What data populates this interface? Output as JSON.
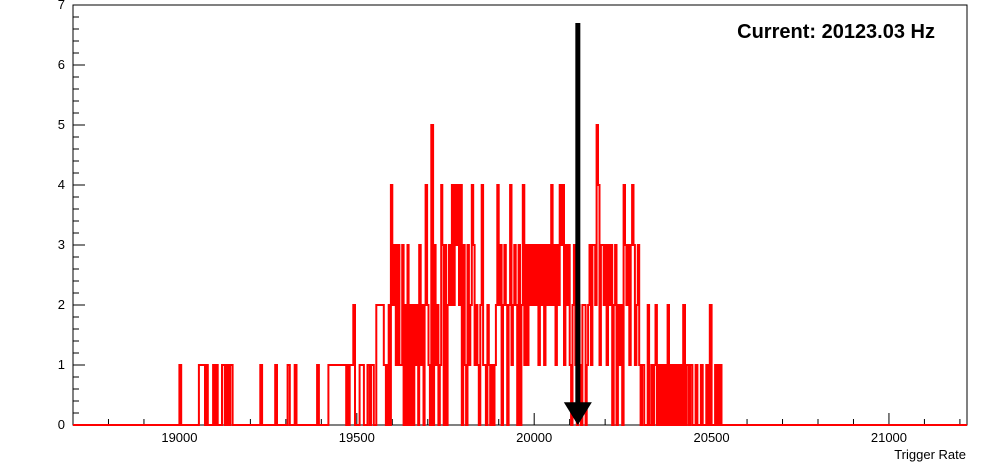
{
  "chart_data": {
    "type": "histogram",
    "title": "",
    "xlabel": "Trigger Rate",
    "ylabel": "",
    "xlim": [
      18700,
      21220
    ],
    "ylim": [
      0,
      7
    ],
    "xticks": [
      19000,
      19500,
      20000,
      20500,
      21000
    ],
    "yticks": [
      0,
      1,
      2,
      3,
      4,
      5,
      6,
      7
    ],
    "grid": false,
    "series": [
      {
        "color": "#ff0000",
        "points": [
          [
            18700,
            0
          ],
          [
            19000,
            1
          ],
          [
            19005,
            0
          ],
          [
            19055,
            1
          ],
          [
            19072,
            0
          ],
          [
            19075,
            1
          ],
          [
            19080,
            0
          ],
          [
            19095,
            1
          ],
          [
            19100,
            0
          ],
          [
            19103,
            1
          ],
          [
            19108,
            0
          ],
          [
            19120,
            1
          ],
          [
            19128,
            0
          ],
          [
            19130,
            1
          ],
          [
            19133,
            0
          ],
          [
            19137,
            1
          ],
          [
            19140,
            0
          ],
          [
            19143,
            1
          ],
          [
            19150,
            0
          ],
          [
            19228,
            1
          ],
          [
            19233,
            0
          ],
          [
            19270,
            1
          ],
          [
            19275,
            0
          ],
          [
            19305,
            1
          ],
          [
            19311,
            0
          ],
          [
            19325,
            1
          ],
          [
            19330,
            0
          ],
          [
            19388,
            1
          ],
          [
            19393,
            0
          ],
          [
            19420,
            1
          ],
          [
            19470,
            0
          ],
          [
            19473,
            1
          ],
          [
            19476,
            0
          ],
          [
            19480,
            1
          ],
          [
            19490,
            2
          ],
          [
            19495,
            0
          ],
          [
            19500,
            0
          ],
          [
            19508,
            1
          ],
          [
            19520,
            0
          ],
          [
            19530,
            1
          ],
          [
            19536,
            0
          ],
          [
            19540,
            1
          ],
          [
            19548,
            0
          ],
          [
            19555,
            2
          ],
          [
            19570,
            2
          ],
          [
            19576,
            1
          ],
          [
            19582,
            0
          ],
          [
            19585,
            1
          ],
          [
            19588,
            0
          ],
          [
            19590,
            2
          ],
          [
            19593,
            0
          ],
          [
            19596,
            4
          ],
          [
            19600,
            2
          ],
          [
            19605,
            3
          ],
          [
            19610,
            1
          ],
          [
            19615,
            3
          ],
          [
            19620,
            1
          ],
          [
            19628,
            3
          ],
          [
            19632,
            0
          ],
          [
            19635,
            2
          ],
          [
            19640,
            0
          ],
          [
            19643,
            3
          ],
          [
            19646,
            0
          ],
          [
            19650,
            2
          ],
          [
            19653,
            0
          ],
          [
            19656,
            2
          ],
          [
            19659,
            0
          ],
          [
            19662,
            2
          ],
          [
            19666,
            1
          ],
          [
            19670,
            2
          ],
          [
            19673,
            0
          ],
          [
            19676,
            3
          ],
          [
            19680,
            1
          ],
          [
            19684,
            2
          ],
          [
            19688,
            0
          ],
          [
            19691,
            2
          ],
          [
            19694,
            4
          ],
          [
            19698,
            2
          ],
          [
            19702,
            1
          ],
          [
            19706,
            0
          ],
          [
            19710,
            5
          ],
          [
            19715,
            0
          ],
          [
            19718,
            3
          ],
          [
            19722,
            1
          ],
          [
            19726,
            2
          ],
          [
            19730,
            0
          ],
          [
            19734,
            1
          ],
          [
            19738,
            4
          ],
          [
            19741,
            3
          ],
          [
            19745,
            0
          ],
          [
            19748,
            3
          ],
          [
            19752,
            0
          ],
          [
            19756,
            2
          ],
          [
            19760,
            3
          ],
          [
            19764,
            2
          ],
          [
            19768,
            4
          ],
          [
            19772,
            2
          ],
          [
            19776,
            4
          ],
          [
            19780,
            3
          ],
          [
            19784,
            4
          ],
          [
            19788,
            2
          ],
          [
            19792,
            4
          ],
          [
            19796,
            0
          ],
          [
            19800,
            3
          ],
          [
            19804,
            1
          ],
          [
            19808,
            0
          ],
          [
            19812,
            3
          ],
          [
            19816,
            1
          ],
          [
            19820,
            2
          ],
          [
            19824,
            4
          ],
          [
            19828,
            3
          ],
          [
            19832,
            1
          ],
          [
            19836,
            2
          ],
          [
            19840,
            1
          ],
          [
            19844,
            0
          ],
          [
            19848,
            2
          ],
          [
            19852,
            4
          ],
          [
            19856,
            1
          ],
          [
            19860,
            1
          ],
          [
            19864,
            0
          ],
          [
            19868,
            2
          ],
          [
            19872,
            1
          ],
          [
            19876,
            0
          ],
          [
            19880,
            1
          ],
          [
            19884,
            0
          ],
          [
            19888,
            1
          ],
          [
            19892,
            2
          ],
          [
            19896,
            4
          ],
          [
            19900,
            2
          ],
          [
            19904,
            3
          ],
          [
            19908,
            0
          ],
          [
            19912,
            2
          ],
          [
            19916,
            3
          ],
          [
            19920,
            2
          ],
          [
            19924,
            0
          ],
          [
            19928,
            2
          ],
          [
            19932,
            4
          ],
          [
            19936,
            1
          ],
          [
            19940,
            2
          ],
          [
            19944,
            3
          ],
          [
            19948,
            2
          ],
          [
            19952,
            0
          ],
          [
            19956,
            3
          ],
          [
            19960,
            0
          ],
          [
            19964,
            2
          ],
          [
            19968,
            4
          ],
          [
            19972,
            1
          ],
          [
            19976,
            3
          ],
          [
            19980,
            1
          ],
          [
            19984,
            3
          ],
          [
            19988,
            2
          ],
          [
            19992,
            3
          ],
          [
            19996,
            2
          ],
          [
            20000,
            3
          ],
          [
            20004,
            2
          ],
          [
            20008,
            3
          ],
          [
            20012,
            1
          ],
          [
            20016,
            3
          ],
          [
            20020,
            2
          ],
          [
            20024,
            3
          ],
          [
            20028,
            1
          ],
          [
            20032,
            3
          ],
          [
            20036,
            2
          ],
          [
            20040,
            3
          ],
          [
            20044,
            2
          ],
          [
            20048,
            4
          ],
          [
            20052,
            2
          ],
          [
            20056,
            3
          ],
          [
            20060,
            1
          ],
          [
            20064,
            3
          ],
          [
            20068,
            2
          ],
          [
            20072,
            4
          ],
          [
            20076,
            3
          ],
          [
            20080,
            4
          ],
          [
            20084,
            1
          ],
          [
            20088,
            3
          ],
          [
            20092,
            2
          ],
          [
            20096,
            3
          ],
          [
            20100,
            1
          ],
          [
            20104,
            0
          ],
          [
            20108,
            2
          ],
          [
            20112,
            3
          ],
          [
            20116,
            1
          ],
          [
            20120,
            0
          ],
          [
            20124,
            2
          ],
          [
            20128,
            1
          ],
          [
            20132,
            0
          ],
          [
            20136,
            2
          ],
          [
            20140,
            2
          ],
          [
            20145,
            0
          ],
          [
            20148,
            1
          ],
          [
            20152,
            2
          ],
          [
            20156,
            3
          ],
          [
            20160,
            1
          ],
          [
            20164,
            3
          ],
          [
            20168,
            3
          ],
          [
            20172,
            2
          ],
          [
            20176,
            5
          ],
          [
            20180,
            4
          ],
          [
            20184,
            1
          ],
          [
            20188,
            3
          ],
          [
            20192,
            3
          ],
          [
            20196,
            2
          ],
          [
            20200,
            3
          ],
          [
            20204,
            1
          ],
          [
            20208,
            3
          ],
          [
            20212,
            2
          ],
          [
            20216,
            3
          ],
          [
            20220,
            0
          ],
          [
            20224,
            2
          ],
          [
            20228,
            3
          ],
          [
            20232,
            0
          ],
          [
            20236,
            2
          ],
          [
            20240,
            1
          ],
          [
            20244,
            2
          ],
          [
            20248,
            0
          ],
          [
            20252,
            4
          ],
          [
            20256,
            3
          ],
          [
            20260,
            2
          ],
          [
            20264,
            3
          ],
          [
            20268,
            1
          ],
          [
            20272,
            3
          ],
          [
            20276,
            4
          ],
          [
            20280,
            3
          ],
          [
            20284,
            1
          ],
          [
            20288,
            2
          ],
          [
            20292,
            3
          ],
          [
            20296,
            1
          ],
          [
            20300,
            0
          ],
          [
            20304,
            1
          ],
          [
            20310,
            0
          ],
          [
            20320,
            2
          ],
          [
            20324,
            0
          ],
          [
            20330,
            1
          ],
          [
            20334,
            0
          ],
          [
            20338,
            1
          ],
          [
            20342,
            2
          ],
          [
            20346,
            0
          ],
          [
            20350,
            1
          ],
          [
            20355,
            0
          ],
          [
            20360,
            1
          ],
          [
            20364,
            0
          ],
          [
            20368,
            1
          ],
          [
            20372,
            0
          ],
          [
            20376,
            2
          ],
          [
            20380,
            0
          ],
          [
            20384,
            1
          ],
          [
            20388,
            0
          ],
          [
            20392,
            1
          ],
          [
            20396,
            0
          ],
          [
            20400,
            1
          ],
          [
            20405,
            0
          ],
          [
            20410,
            1
          ],
          [
            20415,
            0
          ],
          [
            20420,
            2
          ],
          [
            20425,
            0
          ],
          [
            20430,
            1
          ],
          [
            20436,
            0
          ],
          [
            20440,
            1
          ],
          [
            20446,
            0
          ],
          [
            20455,
            1
          ],
          [
            20460,
            0
          ],
          [
            20470,
            1
          ],
          [
            20475,
            0
          ],
          [
            20485,
            1
          ],
          [
            20490,
            0
          ],
          [
            20495,
            2
          ],
          [
            20500,
            0
          ],
          [
            20510,
            1
          ],
          [
            20514,
            0
          ],
          [
            20517,
            1
          ],
          [
            20521,
            0
          ],
          [
            20525,
            1
          ],
          [
            20528,
            0
          ],
          [
            21220,
            0
          ]
        ]
      }
    ],
    "annotations": {
      "current_label": "Current: 20123.03 Hz",
      "marker_x": 20123.03,
      "marker_color": "#000000"
    }
  }
}
